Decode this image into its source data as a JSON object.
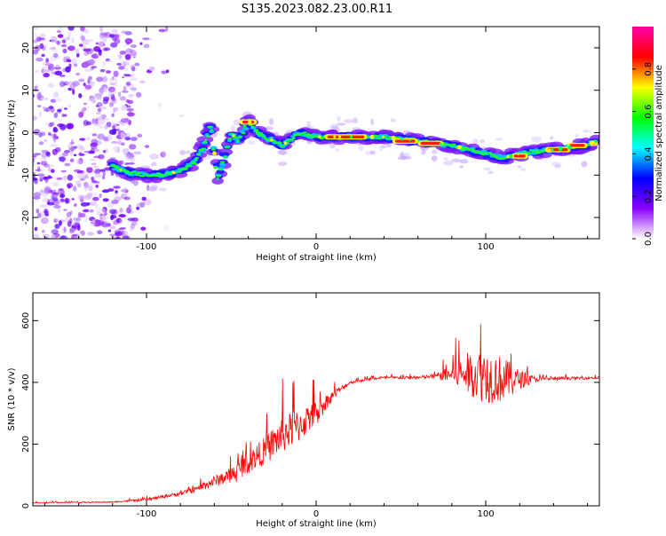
{
  "title": "S135.2023.082.23.00.R11",
  "chart_data": [
    {
      "type": "heatmap",
      "xlabel": "Height of straight line (km)",
      "ylabel": "Frequency (Hz)",
      "xlim": [
        -167,
        167
      ],
      "ylim": [
        -25,
        25
      ],
      "x_ticks": [
        -100,
        0,
        100
      ],
      "y_ticks": [
        -20,
        -10,
        0,
        10,
        20
      ],
      "colorbar": {
        "label": "Normalized spectral amplitude",
        "range": [
          0,
          1
        ],
        "ticks": [
          "0.0",
          "0.2",
          "0.4",
          "0.6",
          "0.8"
        ],
        "colors": [
          "#ffffff",
          "#8a00ff",
          "#0000ff",
          "#00ffff",
          "#00ff00",
          "#ffff00",
          "#ff0000",
          "#ff00aa"
        ]
      },
      "ridge": {
        "x": [
          -120,
          -110,
          -100,
          -90,
          -80,
          -72,
          -66,
          -62,
          -58,
          -54,
          -50,
          -46,
          -40,
          -35,
          -30,
          -20,
          -10,
          0,
          20,
          40,
          60,
          80,
          100,
          110,
          120,
          140,
          160,
          165
        ],
        "y": [
          -8,
          -9.5,
          -10,
          -10,
          -9,
          -7,
          -3,
          2,
          -11,
          -6,
          0,
          -2,
          3,
          0,
          -1,
          -3,
          0,
          -1,
          -1,
          -1,
          -2,
          -3,
          -5,
          -6,
          -5,
          -4,
          -3,
          -2
        ]
      }
    },
    {
      "type": "line",
      "xlabel": "Height of straight line (km)",
      "ylabel": "SNR (10 * v/v)",
      "xlim": [
        -167,
        167
      ],
      "ylim": [
        0,
        690
      ],
      "x_ticks": [
        -100,
        0,
        100
      ],
      "y_ticks": [
        0,
        200,
        400,
        600
      ],
      "series": [
        {
          "color": "#ff0000",
          "envelope": {
            "x": [
              -167,
              -120,
              -100,
              -90,
              -80,
              -70,
              -60,
              -50,
              -40,
              -30,
              -20,
              -10,
              0,
              10,
              20,
              30,
              40,
              60,
              70,
              80,
              90,
              100,
              110,
              120,
              130,
              140,
              167
            ],
            "mean": [
              10,
              12,
              20,
              30,
              40,
              55,
              80,
              100,
              140,
              180,
              230,
              260,
              300,
              360,
              400,
              410,
              415,
              415,
              420,
              425,
              430,
              420,
              410,
              410,
              410,
              412,
              415
            ],
            "amp": [
              3,
              4,
              8,
              10,
              12,
              20,
              35,
              50,
              70,
              90,
              120,
              110,
              80,
              30,
              10,
              8,
              8,
              10,
              15,
              60,
              140,
              180,
              150,
              60,
              15,
              10,
              8
            ]
          }
        }
      ]
    }
  ]
}
